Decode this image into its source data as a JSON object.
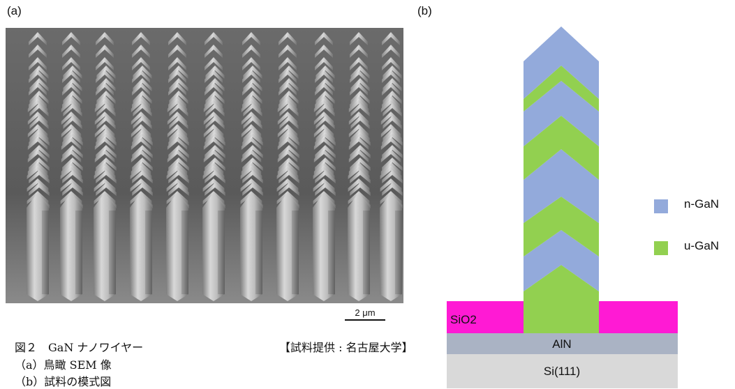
{
  "panel_a_label": "(a)",
  "panel_b_label": "(b)",
  "scale_bar": "2 μm",
  "caption": {
    "title": "図２　GaN ナノワイヤー",
    "source": "【試料提供 : 名古屋大学】",
    "item_a": "（a）鳥瞰 SEM 像",
    "item_b": "（b）試料の模式図"
  },
  "schematic": {
    "layers": {
      "sio2": "SiO2",
      "aln": "AlN",
      "substrate": "Si(111)"
    },
    "legend": [
      {
        "label": "n-GaN",
        "color": "#93aadb"
      },
      {
        "label": "u-GaN",
        "color": "#92d050"
      }
    ],
    "colors": {
      "sio2": "#ff1ad4",
      "aln": "#aab3c4",
      "substrate": "#d9d9d9"
    }
  }
}
